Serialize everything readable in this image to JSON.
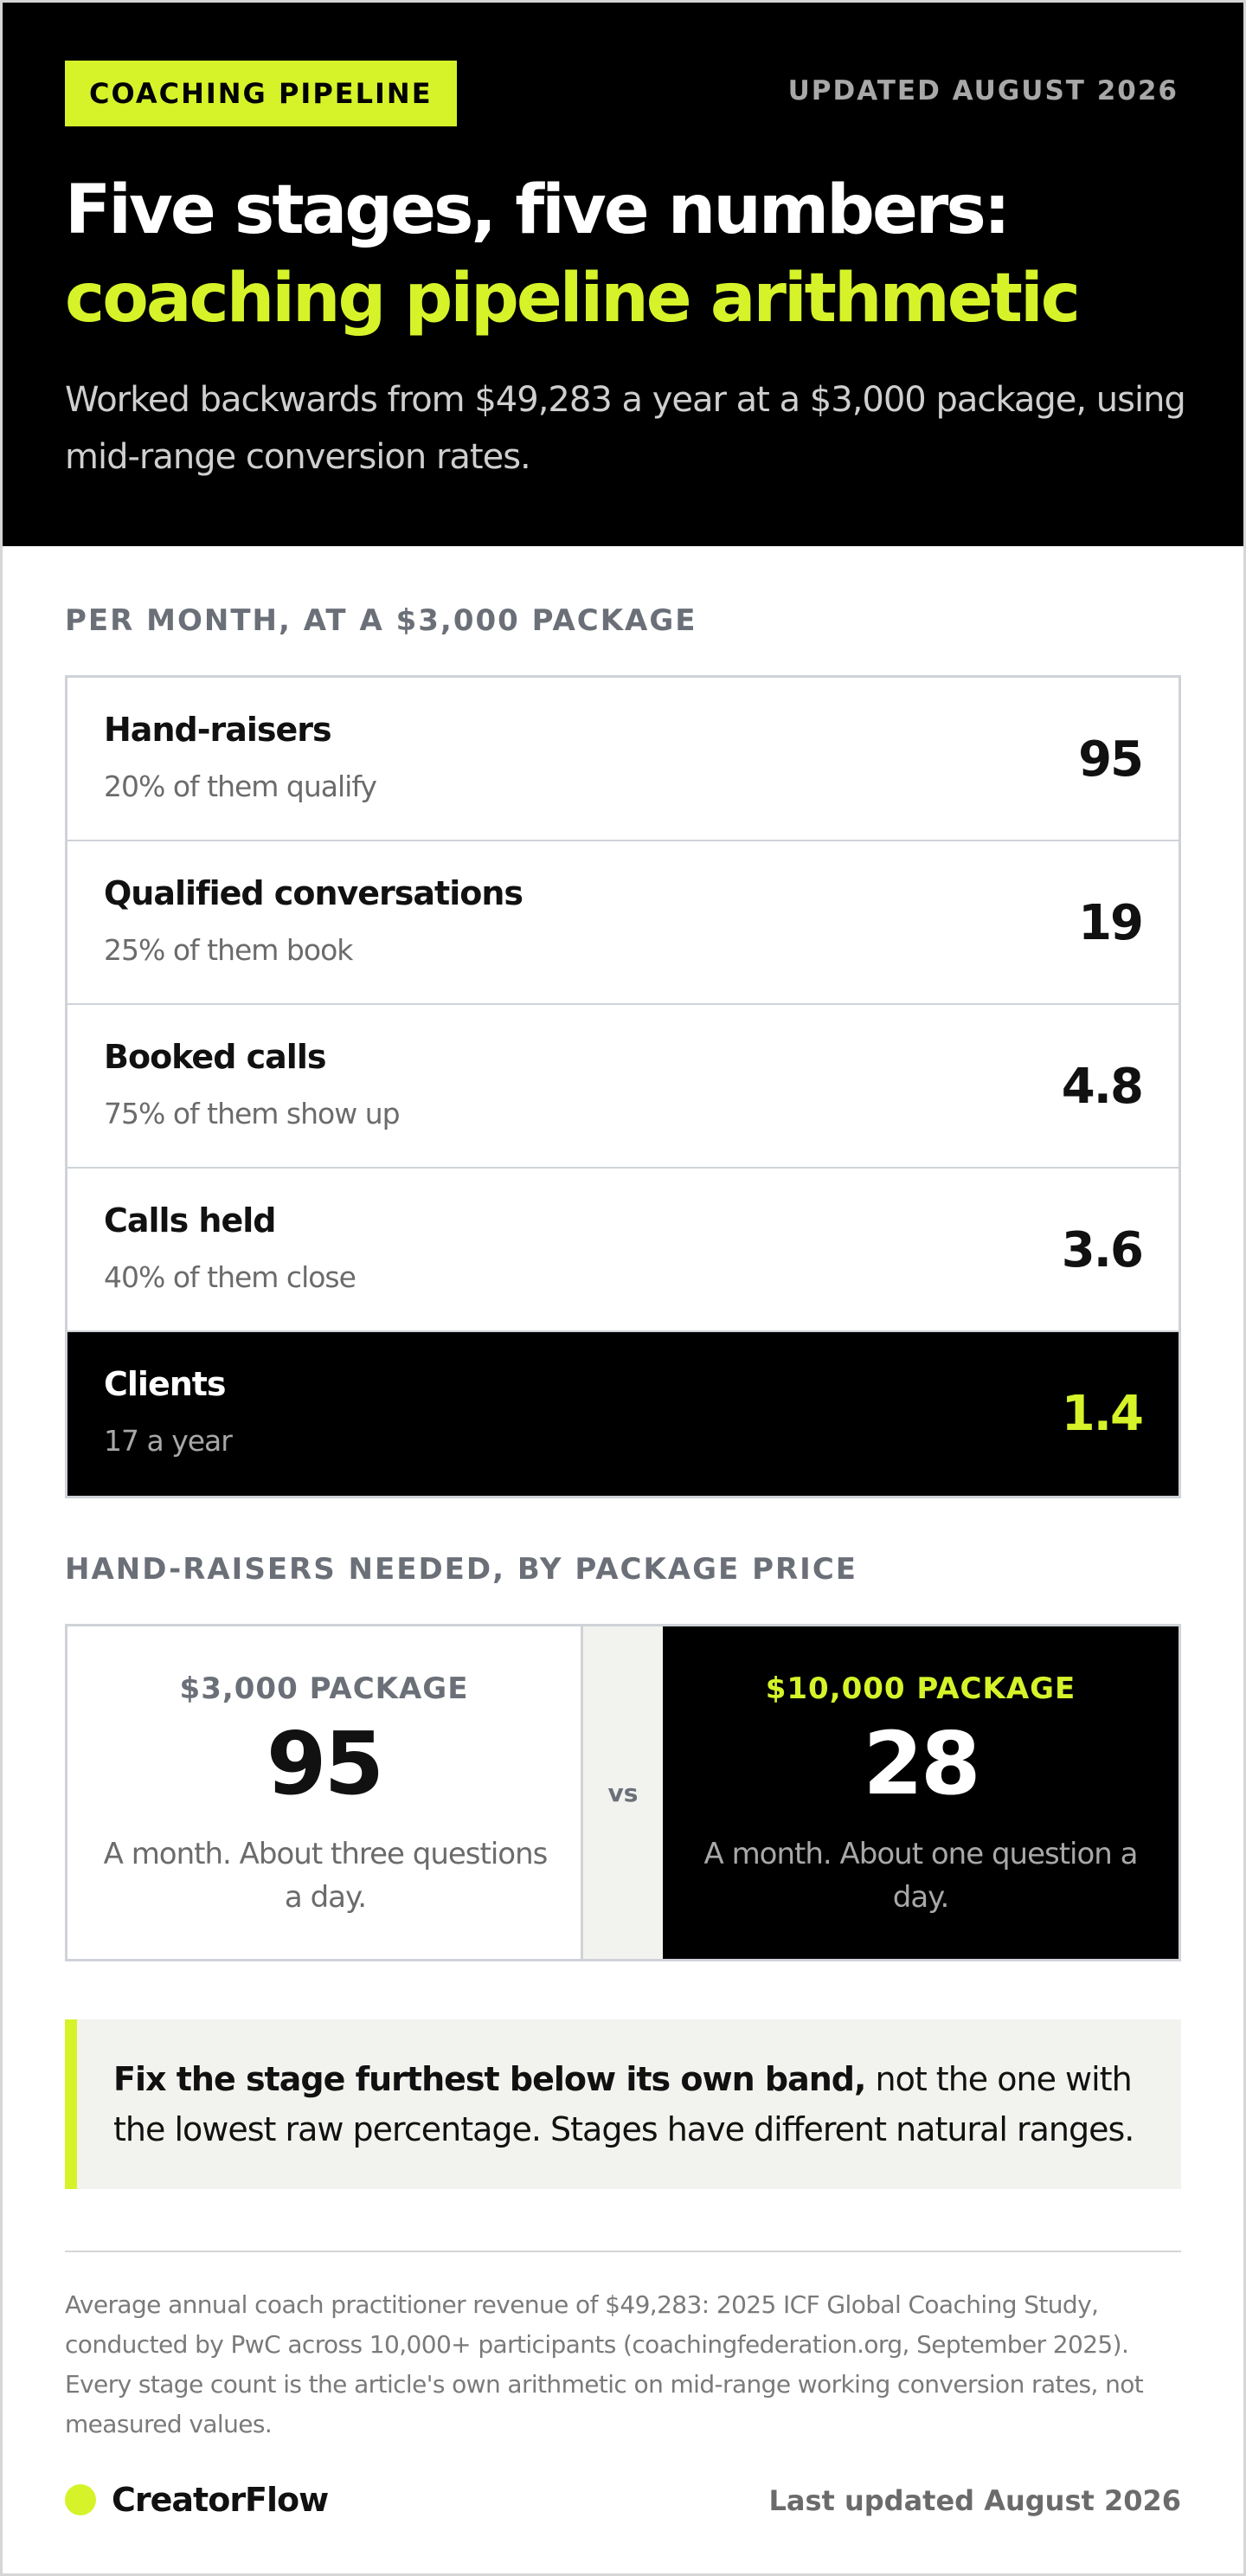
{
  "header": {
    "tag": "COACHING PIPELINE",
    "updated": "UPDATED AUGUST 2026",
    "title_line1": "Five stages, five numbers:",
    "title_line2": "coaching pipeline arithmetic",
    "subtitle": "Worked backwards from $49,283 a year at a $3,000 package, using mid-range conversion rates."
  },
  "funnel": {
    "label": "PER MONTH, AT A $3,000 PACKAGE",
    "stages": [
      {
        "name": "Hand-raisers",
        "note": "20% of them qualify",
        "value": "95"
      },
      {
        "name": "Qualified conversations",
        "note": "25% of them book",
        "value": "19"
      },
      {
        "name": "Booked calls",
        "note": "75% of them show up",
        "value": "4.8"
      },
      {
        "name": "Calls held",
        "note": "40% of them close",
        "value": "3.6"
      },
      {
        "name": "Clients",
        "note": "17 a year",
        "value": "1.4"
      }
    ]
  },
  "comparison": {
    "label": "HAND-RAISERS NEEDED, BY PACKAGE PRICE",
    "left": {
      "label": "$3,000 PACKAGE",
      "value": "95",
      "desc": "A month. About three questions a day."
    },
    "vs": "vs",
    "right": {
      "label": "$10,000 PACKAGE",
      "value": "28",
      "desc": "A month. About one question a day."
    }
  },
  "callout": {
    "bold": "Fix the stage furthest below its own band,",
    "rest": " not the one with the lowest raw percentage. Stages have different natural ranges."
  },
  "footnote": "Average annual coach practitioner revenue of $49,283: 2025 ICF Global Coaching Study, conducted by PwC across 10,000+ participants (coachingfederation.org, September 2025). Every stage count is the article's own arithmetic on mid-range working conversion rates, not measured values.",
  "footer": {
    "brand": "CreatorFlow",
    "last_updated": "Last updated August 2026"
  },
  "colors": {
    "accent": "#d6f32a",
    "dark": "#000000",
    "muted": "#6b7078"
  }
}
